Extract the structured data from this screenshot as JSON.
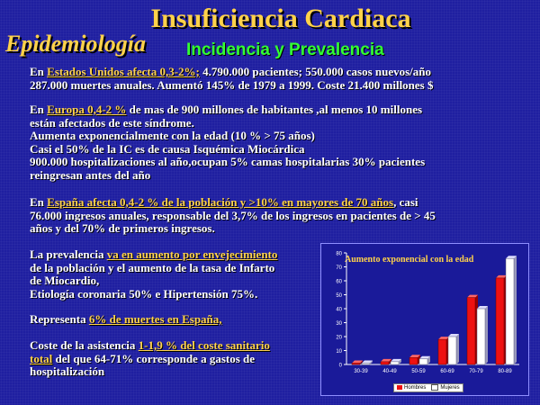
{
  "slide": {
    "title": "Insuficiencia Cardiaca",
    "section": "Epidemiología",
    "subtitle": "Incidencia y Prevalencia"
  },
  "paragraphs": {
    "p1": {
      "pre": "En ",
      "hl": "Estados Unidos afecta 0,3-2%;",
      "rest1": " 4.790.000 pacientes; 550.000 casos nuevos/año",
      "line2": "287.000 muertes anuales. Aumentó 145% de 1979 a 1999. Coste 21.400 millones $"
    },
    "p2": {
      "pre": "En ",
      "hl": "Europa 0,4-2 %",
      "rest1": " de mas de 900 millones de habitantes ,al menos 10 millones",
      "line2": "están afectados de este síndrome.",
      "line3": "Aumenta exponencialmente con la edad (10 % > 75 años)",
      "line4": "Casi el 50% de la IC es de causa Isquémica Miocárdica",
      "line5": "900.000 hospitalizaciones al año,ocupan 5% camas hospitalarias 30% pacientes",
      "line6": "reingresan antes del año"
    },
    "p3": {
      "pre": "En ",
      "hl": "España afecta 0,4-2 % de la población y >10% en mayores de 70 años",
      "rest1": ", casi",
      "line2": "76.000 ingresos anuales, responsable del 3,7% de los ingresos en pacientes de > 45",
      "line3": "años y del 70% de primeros ingresos."
    },
    "p4": {
      "pre": "La prevalencia ",
      "hl": "va en aumento por envejecimiento",
      "line2": "de la población y el aumento de la tasa de Infarto",
      "line3": "de Miocardio,",
      "line4": "Etiología coronaria 50% e Hipertensión 75%."
    },
    "p5": {
      "pre": "Representa ",
      "hl": "6% de muertes en España,"
    },
    "p6": {
      "pre": "Coste de la asistencia ",
      "hl1": "1-1,9 % del coste sanitario",
      "hl2": "total",
      "rest2": " del que 64-71% corresponde a gastos de",
      "line3": "hospitalización"
    }
  },
  "chart_data": {
    "type": "bar",
    "title": "Aumento exponencial con la edad",
    "categories": [
      "30-39",
      "40-49",
      "50-59",
      "60-69",
      "70-79",
      "80-89"
    ],
    "series": [
      {
        "name": "Hombres",
        "color": "#ee1111",
        "values": [
          1,
          2,
          5,
          18,
          48,
          62
        ]
      },
      {
        "name": "Mujeres",
        "color": "#ffffff",
        "values": [
          1,
          2,
          4,
          20,
          40,
          76
        ]
      }
    ],
    "ylim": [
      0,
      80
    ],
    "yticks": [
      0,
      10,
      20,
      30,
      40,
      50,
      60,
      70,
      80
    ],
    "grid": false,
    "legend": "bottom"
  }
}
